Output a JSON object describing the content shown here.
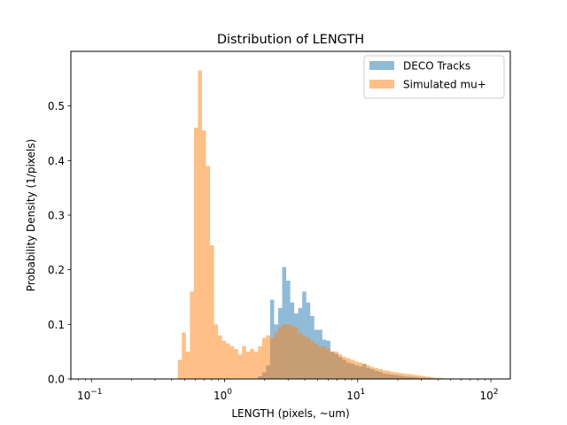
{
  "chart_data": {
    "type": "histogram",
    "title": "Distribution of LENGTH",
    "xlabel": "LENGTH (pixels, ~um)",
    "ylabel": "Probability Density (1/pixels)",
    "xscale": "log",
    "xlim": [
      0.07,
      140
    ],
    "ylim": [
      0,
      0.6
    ],
    "x_ticks": [
      {
        "value": 0.1,
        "base": "10",
        "exp": "−1"
      },
      {
        "value": 1,
        "base": "10",
        "exp": "0"
      },
      {
        "value": 10,
        "base": "10",
        "exp": "1"
      },
      {
        "value": 100,
        "base": "10",
        "exp": "2"
      }
    ],
    "y_ticks": [
      {
        "value": 0.0,
        "label": "0.0"
      },
      {
        "value": 0.1,
        "label": "0.1"
      },
      {
        "value": 0.2,
        "label": "0.2"
      },
      {
        "value": 0.3,
        "label": "0.3"
      },
      {
        "value": 0.4,
        "label": "0.4"
      },
      {
        "value": 0.5,
        "label": "0.5"
      }
    ],
    "legend_position": "top-right",
    "bin_edges": [
      0.4456,
      0.4776,
      0.5119,
      0.5487,
      0.5881,
      0.6304,
      0.6757,
      0.7243,
      0.7763,
      0.8321,
      0.8919,
      0.956,
      1.0247,
      1.0983,
      1.1772,
      1.2618,
      1.3524,
      1.4496,
      1.5538,
      1.6654,
      1.7851,
      1.9134,
      2.0509,
      2.1982,
      2.3562,
      2.5255,
      2.707,
      2.9015,
      3.11,
      3.3335,
      3.573,
      3.8297,
      4.1049,
      4.3999,
      4.7161,
      5.055,
      5.4182,
      5.8075,
      6.2249,
      6.6722,
      7.1516,
      7.6655,
      8.2163,
      8.8067,
      9.4395,
      10.1178,
      10.8449,
      11.6242,
      12.4595,
      13.3548,
      14.3144,
      15.343,
      16.4455,
      17.6273,
      18.8939,
      20.2516,
      21.7068,
      23.2666,
      24.9385,
      26.7305,
      28.6512,
      30.71,
      32.9168,
      35.2821,
      37.8174,
      40.5348,
      43.4475,
      46.5695,
      49.9158,
      53.5026
    ],
    "series": [
      {
        "name": "DECO Tracks",
        "color": "#1f77b4",
        "opacity": 0.5,
        "values": [
          0,
          0,
          0,
          0,
          0,
          0,
          0,
          0,
          0,
          0,
          0,
          0,
          0,
          0,
          0,
          0,
          0,
          0,
          0,
          0,
          0.005,
          0.012,
          0.025,
          0.145,
          0.1,
          0.13,
          0.205,
          0.18,
          0.14,
          0.12,
          0.13,
          0.16,
          0.14,
          0.115,
          0.09,
          0.09,
          0.072,
          0.07,
          0.05,
          0.046,
          0.04,
          0.035,
          0.03,
          0.028,
          0.025,
          0.023,
          0.027,
          0.02,
          0.018,
          0.015,
          0.013,
          0.01,
          0.009,
          0.008,
          0.007,
          0.006,
          0.005,
          0.004,
          0.004,
          0.003,
          0.002,
          0.002,
          0.002,
          0.001,
          0.001,
          0.001,
          0.001,
          0.0,
          0.0
        ]
      },
      {
        "name": "Simulated mu+",
        "color": "#ff7f0e",
        "opacity": 0.5,
        "values": [
          0.035,
          0.085,
          0.05,
          0.16,
          0.46,
          0.565,
          0.455,
          0.39,
          0.245,
          0.1,
          0.08,
          0.07,
          0.065,
          0.06,
          0.055,
          0.045,
          0.06,
          0.05,
          0.055,
          0.05,
          0.06,
          0.075,
          0.08,
          0.075,
          0.085,
          0.095,
          0.1,
          0.1,
          0.098,
          0.095,
          0.085,
          0.08,
          0.075,
          0.07,
          0.065,
          0.06,
          0.06,
          0.055,
          0.05,
          0.05,
          0.045,
          0.04,
          0.038,
          0.035,
          0.032,
          0.03,
          0.028,
          0.025,
          0.022,
          0.02,
          0.018,
          0.016,
          0.015,
          0.013,
          0.012,
          0.011,
          0.01,
          0.009,
          0.008,
          0.007,
          0.006,
          0.005,
          0.004,
          0.003,
          0.002,
          0.002,
          0.001,
          0.001,
          0.001
        ]
      }
    ]
  }
}
